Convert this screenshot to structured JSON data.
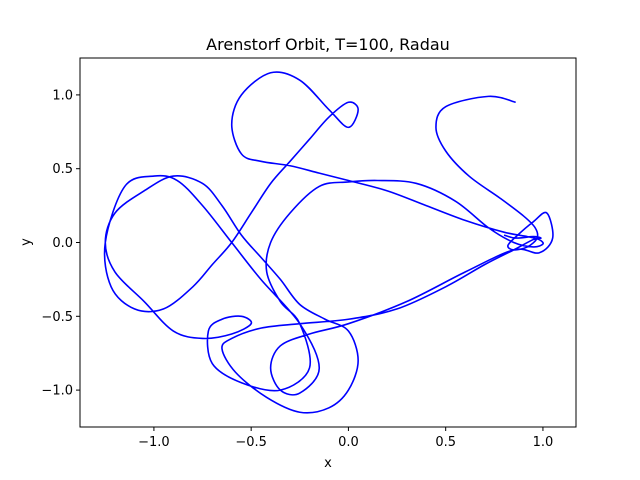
{
  "chart_data": {
    "type": "line",
    "title": "Arenstorf Orbit, T=100, Radau",
    "xlabel": "x",
    "ylabel": "y",
    "xlim": [
      -1.38,
      1.17
    ],
    "ylim": [
      -1.25,
      1.25
    ],
    "xticks": [
      -1.0,
      -0.5,
      0.0,
      0.5,
      1.0
    ],
    "xtick_labels": [
      "−1.0",
      "−0.5",
      "0.0",
      "0.5",
      "1.0"
    ],
    "yticks": [
      -1.0,
      -0.5,
      0.0,
      0.5,
      1.0
    ],
    "ytick_labels": [
      "−1.0",
      "−0.5",
      "0.0",
      "0.5",
      "1.0"
    ],
    "grid": false,
    "line_color": "#0000ff",
    "series": [
      {
        "x": [
          0.86,
          0.72,
          0.5,
          0.45,
          0.5,
          0.62,
          0.78,
          0.9,
          0.96,
          0.97,
          0.92,
          0.85,
          0.82,
          0.87,
          0.95,
          1.02,
          1.05,
          0.98,
          0.85,
          0.6,
          0.3,
          0.0,
          -0.2,
          -0.35,
          -0.4,
          -0.35,
          -0.25,
          -0.15,
          -0.25,
          -0.45,
          -0.6,
          -0.75,
          -0.88,
          -1.0,
          -1.15,
          -1.25,
          -1.22,
          -1.1,
          -0.95,
          -0.8,
          -0.7,
          -0.6,
          -0.5,
          -0.4,
          -0.3,
          -0.2,
          -0.1,
          0.0,
          0.05,
          0.0,
          -0.1,
          -0.25,
          -0.4,
          -0.55,
          -0.6,
          -0.55,
          -0.45,
          -0.3,
          -0.15,
          0.0,
          0.2,
          0.4,
          0.6,
          0.8,
          0.92,
          0.98,
          1.0,
          0.95,
          0.85,
          0.72,
          0.55,
          0.35,
          0.15,
          0.0,
          -0.15,
          -0.3,
          -0.4,
          -0.42,
          -0.35,
          -0.25,
          -0.2,
          -0.35,
          -0.55,
          -0.7,
          -0.72,
          -0.65,
          -0.55,
          -0.5,
          -0.6,
          -0.75,
          -0.9,
          -1.05,
          -1.2,
          -1.25,
          -1.2,
          -1.05,
          -0.9,
          -0.75,
          -0.65,
          -0.55,
          -0.45,
          -0.35,
          -0.25,
          -0.12,
          0.0,
          0.05,
          0.0,
          -0.1,
          -0.25,
          -0.42,
          -0.58,
          -0.65,
          -0.6,
          -0.45,
          -0.25,
          0.0,
          0.25,
          0.5,
          0.7,
          0.85,
          0.95,
          0.99,
          0.95,
          0.86,
          0.8
        ],
        "y": [
          0.95,
          0.99,
          0.92,
          0.78,
          0.62,
          0.45,
          0.3,
          0.18,
          0.1,
          0.03,
          -0.03,
          -0.05,
          -0.02,
          0.05,
          0.14,
          0.2,
          0.03,
          -0.07,
          -0.05,
          -0.2,
          -0.4,
          -0.55,
          -0.62,
          -0.7,
          -0.85,
          -1.0,
          -1.02,
          -0.85,
          -0.55,
          -0.25,
          0.0,
          0.25,
          0.42,
          0.45,
          0.38,
          0.0,
          -0.3,
          -0.45,
          -0.45,
          -0.3,
          -0.15,
          0.0,
          0.2,
          0.4,
          0.55,
          0.7,
          0.85,
          0.95,
          0.9,
          0.78,
          0.9,
          1.1,
          1.15,
          1.0,
          0.8,
          0.6,
          0.55,
          0.52,
          0.47,
          0.42,
          0.35,
          0.25,
          0.15,
          0.07,
          0.04,
          0.02,
          -0.01,
          -0.03,
          0.0,
          0.1,
          0.28,
          0.4,
          0.42,
          0.41,
          0.38,
          0.2,
          0.0,
          -0.2,
          -0.4,
          -0.55,
          -0.85,
          -1.0,
          -0.95,
          -0.82,
          -0.6,
          -0.52,
          -0.5,
          -0.55,
          -0.62,
          -0.65,
          -0.6,
          -0.4,
          -0.2,
          0.0,
          0.2,
          0.35,
          0.45,
          0.4,
          0.25,
          0.05,
          -0.1,
          -0.25,
          -0.42,
          -0.52,
          -0.6,
          -0.8,
          -1.0,
          -1.12,
          -1.15,
          -1.05,
          -0.88,
          -0.72,
          -0.65,
          -0.58,
          -0.55,
          -0.52,
          -0.45,
          -0.3,
          -0.15,
          -0.05,
          0.02,
          0.03,
          0.04,
          0.03,
          0.05
        ]
      }
    ]
  }
}
